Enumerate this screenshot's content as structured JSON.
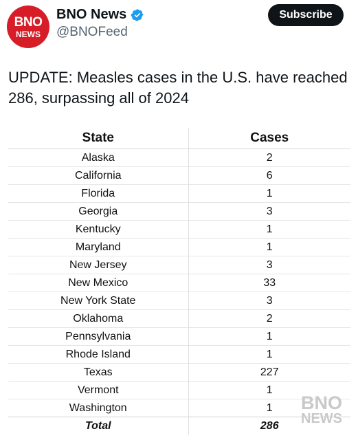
{
  "account": {
    "avatar_line1": "BNO",
    "avatar_line2": "NEWS",
    "name": "BNO News",
    "handle": "@BNOFeed",
    "verified_icon": "verified-badge-icon",
    "subscribe_label": "Subscribe"
  },
  "post": {
    "text": "UPDATE: Measles cases in the U.S. have reached 286, surpassing all of 2024"
  },
  "table": {
    "headers": [
      "State",
      "Cases"
    ],
    "rows": [
      [
        "Alaska",
        "2"
      ],
      [
        "California",
        "6"
      ],
      [
        "Florida",
        "1"
      ],
      [
        "Georgia",
        "3"
      ],
      [
        "Kentucky",
        "1"
      ],
      [
        "Maryland",
        "1"
      ],
      [
        "New Jersey",
        "3"
      ],
      [
        "New Mexico",
        "33"
      ],
      [
        "New York State",
        "3"
      ],
      [
        "Oklahoma",
        "2"
      ],
      [
        "Pennsylvania",
        "1"
      ],
      [
        "Rhode Island",
        "1"
      ],
      [
        "Texas",
        "227"
      ],
      [
        "Vermont",
        "1"
      ],
      [
        "Washington",
        "1"
      ]
    ],
    "total": [
      "Total",
      "286"
    ]
  },
  "watermark": {
    "line1": "BNO",
    "line2": "NEWS"
  },
  "colors": {
    "brand_red": "#d71e28",
    "verified_blue": "#1d9bf0",
    "button_bg": "#0f1419",
    "handle_gray": "#536471"
  }
}
